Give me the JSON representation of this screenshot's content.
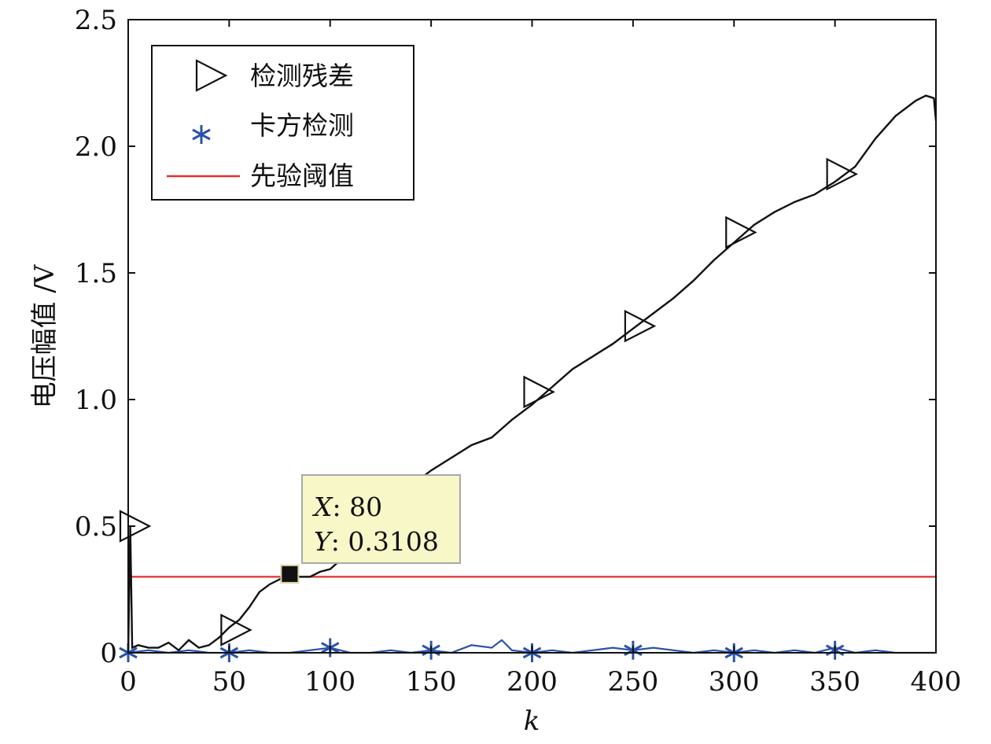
{
  "chart_data": {
    "type": "line",
    "xlabel": "k",
    "ylabel": "电压幅值 /V",
    "xlim": [
      0,
      400
    ],
    "ylim": [
      0,
      2.5
    ],
    "x_ticks": [
      0,
      50,
      100,
      150,
      200,
      250,
      300,
      350,
      400
    ],
    "x_tick_labels": [
      "0",
      "50",
      "100",
      "150",
      "200",
      "250",
      "300",
      "350",
      "400"
    ],
    "y_ticks": [
      0,
      0.5,
      1.0,
      1.5,
      2.0,
      2.5
    ],
    "y_tick_labels": [
      "0",
      "0.5",
      "1.0",
      "1.5",
      "2.0",
      "2.5"
    ],
    "grid": false,
    "legend_position": "top-left",
    "series": [
      {
        "name": "检测残差",
        "color": "#111111",
        "marker": "triangle-right",
        "x": [
          0,
          1,
          2,
          5,
          10,
          15,
          20,
          25,
          30,
          35,
          40,
          45,
          50,
          55,
          60,
          65,
          70,
          75,
          80,
          85,
          90,
          95,
          100,
          110,
          120,
          130,
          140,
          150,
          160,
          170,
          180,
          190,
          200,
          210,
          220,
          230,
          240,
          250,
          260,
          270,
          280,
          290,
          300,
          310,
          320,
          330,
          340,
          350,
          360,
          370,
          380,
          390,
          395,
          399,
          400
        ],
        "y": [
          0,
          0.5,
          0.02,
          0.03,
          0.02,
          0.02,
          0.04,
          0.01,
          0.05,
          0.02,
          0.03,
          0.06,
          0.1,
          0.13,
          0.18,
          0.24,
          0.27,
          0.29,
          0.31,
          0.3,
          0.3,
          0.32,
          0.33,
          0.4,
          0.49,
          0.6,
          0.66,
          0.72,
          0.77,
          0.82,
          0.85,
          0.92,
          0.98,
          1.05,
          1.12,
          1.17,
          1.22,
          1.28,
          1.34,
          1.4,
          1.47,
          1.55,
          1.62,
          1.69,
          1.74,
          1.78,
          1.81,
          1.86,
          1.92,
          2.03,
          2.12,
          2.18,
          2.2,
          2.19,
          2.1
        ],
        "marker_x": [
          0,
          50,
          200,
          250,
          300,
          350
        ],
        "marker_y": [
          0.5,
          0.09,
          1.03,
          1.29,
          1.66,
          1.89
        ]
      },
      {
        "name": "卡方检测",
        "color": "#2a52a8",
        "marker": "asterisk",
        "x": [
          0,
          10,
          20,
          30,
          40,
          50,
          60,
          70,
          80,
          90,
          100,
          110,
          120,
          130,
          140,
          150,
          160,
          170,
          180,
          185,
          190,
          200,
          210,
          220,
          230,
          240,
          250,
          260,
          270,
          280,
          290,
          300,
          310,
          320,
          330,
          340,
          350,
          360,
          370,
          380,
          390,
          400
        ],
        "y": [
          0,
          0.01,
          0.0,
          0.01,
          0.0,
          0.0,
          0.01,
          0.0,
          0.0,
          0.01,
          0.02,
          0.0,
          0.0,
          0.01,
          0.0,
          0.01,
          0.0,
          0.03,
          0.02,
          0.05,
          0.01,
          0.0,
          0.01,
          0.0,
          0.01,
          0.02,
          0.01,
          0.02,
          0.01,
          0.0,
          0.01,
          0.0,
          0.01,
          0.0,
          0.01,
          0.0,
          0.02,
          0.0,
          0.01,
          0.0,
          0.0,
          0.0
        ],
        "marker_x": [
          0,
          50,
          100,
          150,
          200,
          250,
          300,
          350
        ],
        "marker_y": [
          0,
          0,
          0.02,
          0.01,
          0,
          0.01,
          0,
          0.01
        ]
      },
      {
        "name": "先验阈值",
        "color": "#e03030",
        "marker": "none",
        "x": [
          0,
          400
        ],
        "y": [
          0.3,
          0.3
        ]
      }
    ],
    "annotations": [
      {
        "type": "datatip",
        "x": 80,
        "y": 0.3108,
        "x_label": "X",
        "x_text": ": 80",
        "y_label": "Y",
        "y_text": ": 0.3108"
      }
    ]
  }
}
